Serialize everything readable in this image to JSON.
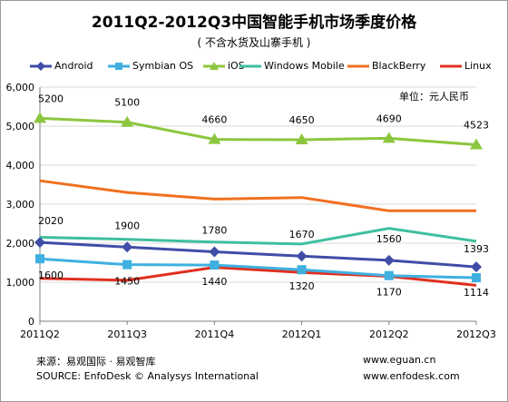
{
  "chart_data": {
    "type": "line",
    "title": "2011Q2-2012Q3中国智能手机市场季度价格",
    "subtitle": "( 不含水货及山寨手机 )",
    "unit_note": "单位：元人民币",
    "categories": [
      "2011Q2",
      "2011Q3",
      "2011Q4",
      "2012Q1",
      "2012Q2",
      "2012Q3"
    ],
    "ylim": [
      0,
      6000
    ],
    "yticks": [
      "0",
      "1,000",
      "2,000",
      "3,000",
      "4,000",
      "5,000",
      "6,000"
    ],
    "grid": true,
    "legend": "top",
    "series": [
      {
        "name": "Android",
        "color": "#3f4da6",
        "marker": "diamond",
        "values": [
          2020,
          1900,
          1780,
          1670,
          1560,
          1393
        ],
        "labels": [
          "2020",
          "1900",
          "1780",
          "1670",
          "1560",
          "1393"
        ]
      },
      {
        "name": "Symbian OS",
        "color": "#3fb0e0",
        "marker": "square",
        "values": [
          1600,
          1450,
          1440,
          1320,
          1170,
          1114
        ],
        "labels": [
          "1600",
          "1450",
          "1440",
          "1320",
          "1170",
          "1114"
        ]
      },
      {
        "name": "iOS",
        "color": "#8cc63e",
        "marker": "triangle",
        "values": [
          5200,
          5100,
          4660,
          4650,
          4690,
          4523
        ],
        "labels": [
          "5200",
          "5100",
          "4660",
          "4650",
          "4690",
          "4523"
        ]
      },
      {
        "name": "Windows Mobile",
        "color": "#3fbf9f",
        "marker": "none",
        "values": [
          2150,
          2100,
          2030,
          1980,
          2380,
          2050
        ]
      },
      {
        "name": "BlackBerry",
        "color": "#f07020",
        "marker": "none",
        "values": [
          3600,
          3300,
          3130,
          3170,
          2830,
          2830
        ]
      },
      {
        "name": "Linux",
        "color": "#e03020",
        "marker": "none",
        "values": [
          1100,
          1050,
          1380,
          1250,
          1150,
          920
        ]
      }
    ]
  },
  "footer": {
    "source_cn": "来源：易观国际 · 易观智库",
    "source_en": "SOURCE: EnfoDesk © Analysys International",
    "url1": "www.eguan.cn",
    "url2": "www.enfodesk.com"
  }
}
